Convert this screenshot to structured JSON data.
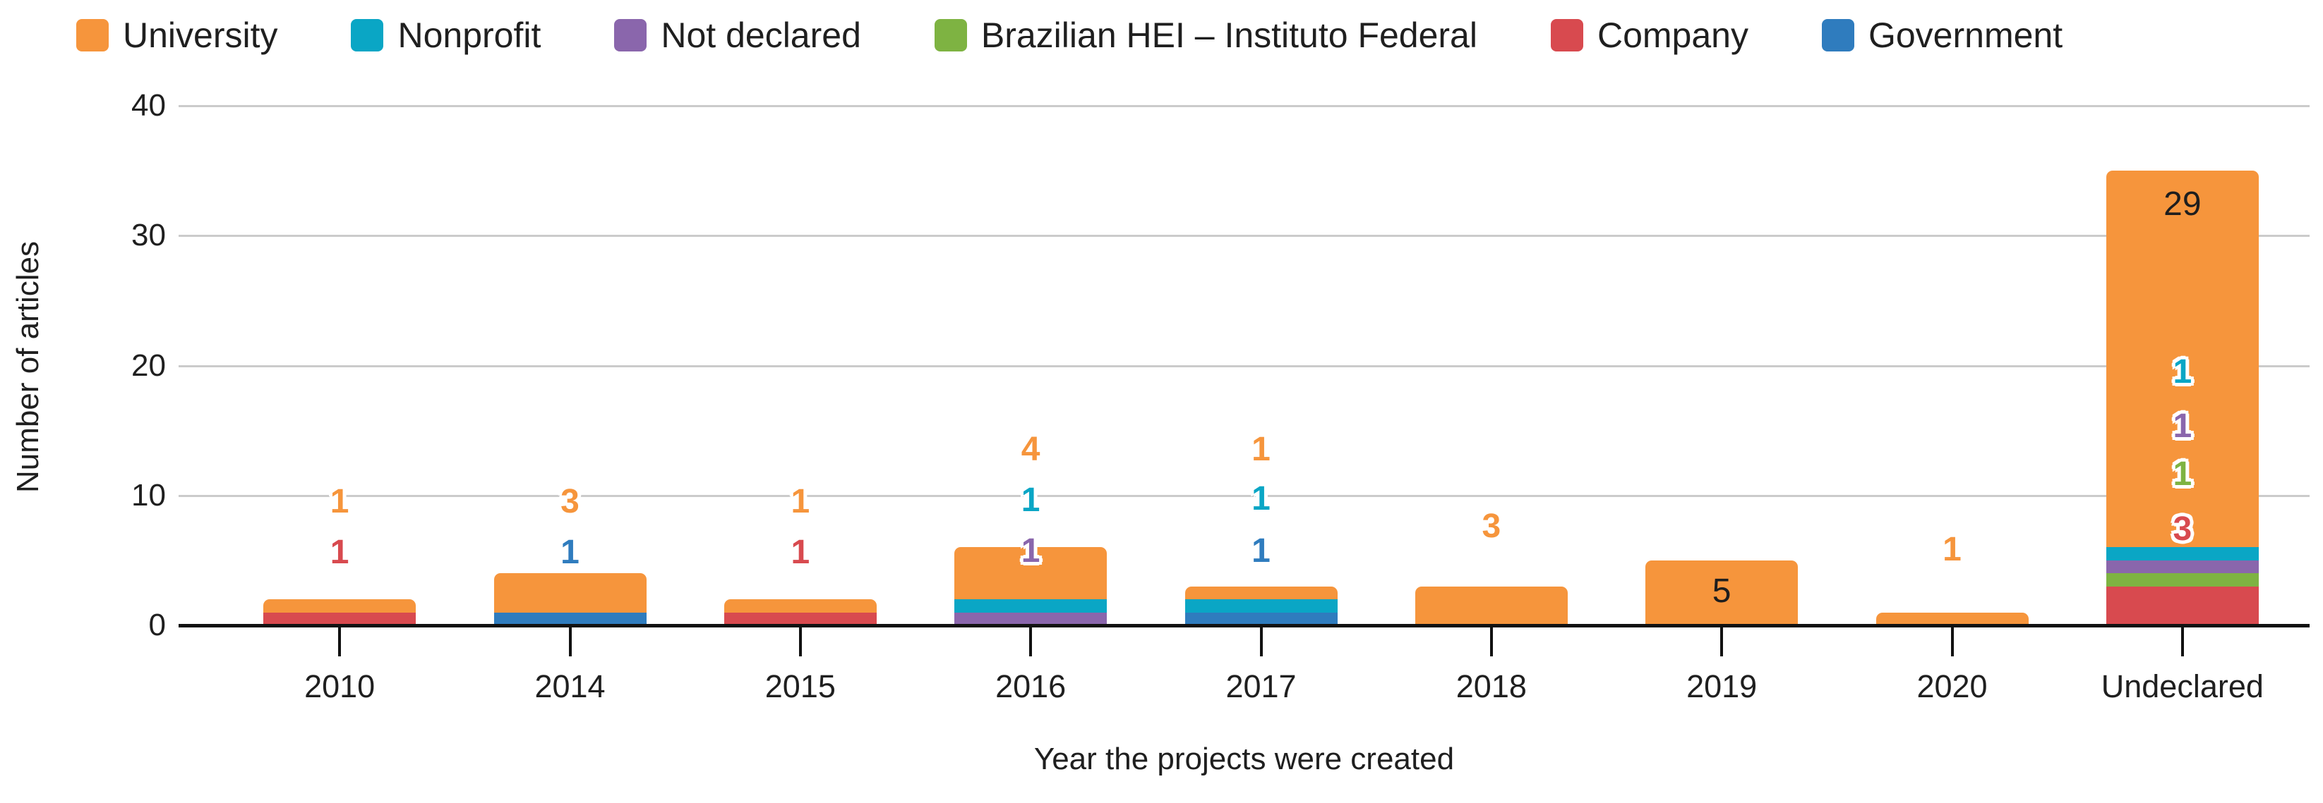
{
  "colors": {
    "university": "#F6953C",
    "nonprofit": "#0AA6C5",
    "not_declared": "#8A66AC",
    "brazilian_hei": "#7EB342",
    "company": "#D84A4F",
    "government": "#2F7CBE",
    "black": "#1E1E1E",
    "grid": "#CBCBCB",
    "axis": "#111111"
  },
  "legend": {
    "items": [
      {
        "label": "University",
        "color_key": "university"
      },
      {
        "label": "Nonprofit",
        "color_key": "nonprofit"
      },
      {
        "label": "Not declared",
        "color_key": "not_declared"
      },
      {
        "label": "Brazilian HEI – Instituto Federal",
        "color_key": "brazilian_hei"
      },
      {
        "label": "Company",
        "color_key": "company"
      },
      {
        "label": "Government",
        "color_key": "government"
      }
    ]
  },
  "y_axis": {
    "title": "Number of articles",
    "ticks": [
      "0",
      "10",
      "20",
      "30",
      "40"
    ],
    "max": 40
  },
  "x_axis": {
    "title": "Year the projects were created",
    "categories": [
      "2010",
      "2014",
      "2015",
      "2016",
      "2017",
      "2018",
      "2019",
      "2020",
      "Undeclared"
    ]
  },
  "bars": [
    {
      "category": "2010",
      "segments": [
        {
          "series": "company",
          "value": 1
        },
        {
          "series": "university",
          "value": 1
        }
      ],
      "annotations": [
        {
          "text": "1",
          "color_key": "university",
          "y": 9.5,
          "style": "outlined"
        },
        {
          "text": "1",
          "color_key": "company",
          "y": 5.6,
          "style": "outlined"
        }
      ]
    },
    {
      "category": "2014",
      "segments": [
        {
          "series": "government",
          "value": 1
        },
        {
          "series": "university",
          "value": 3
        }
      ],
      "annotations": [
        {
          "text": "3",
          "color_key": "university",
          "y": 9.5,
          "style": "outlined"
        },
        {
          "text": "1",
          "color_key": "government",
          "y": 5.6,
          "style": "outlined"
        }
      ]
    },
    {
      "category": "2015",
      "segments": [
        {
          "series": "company",
          "value": 1
        },
        {
          "series": "university",
          "value": 1
        }
      ],
      "annotations": [
        {
          "text": "1",
          "color_key": "university",
          "y": 9.5,
          "style": "outlined"
        },
        {
          "text": "1",
          "color_key": "company",
          "y": 5.6,
          "style": "outlined"
        }
      ]
    },
    {
      "category": "2016",
      "segments": [
        {
          "series": "not_declared",
          "value": 1
        },
        {
          "series": "nonprofit",
          "value": 1
        },
        {
          "series": "university",
          "value": 4
        }
      ],
      "annotations": [
        {
          "text": "4",
          "color_key": "university",
          "y": 13.5,
          "style": "outlined"
        },
        {
          "text": "1",
          "color_key": "nonprofit",
          "y": 9.6,
          "style": "outlined"
        },
        {
          "text": "1",
          "color_key": "not_declared",
          "y": 5.7,
          "style": "outlined"
        }
      ]
    },
    {
      "category": "2017",
      "segments": [
        {
          "series": "government",
          "value": 1
        },
        {
          "series": "nonprofit",
          "value": 1
        },
        {
          "series": "university",
          "value": 1
        }
      ],
      "annotations": [
        {
          "text": "1",
          "color_key": "university",
          "y": 13.5,
          "style": "outlined"
        },
        {
          "text": "1",
          "color_key": "nonprofit",
          "y": 9.7,
          "style": "outlined"
        },
        {
          "text": "1",
          "color_key": "government",
          "y": 5.7,
          "style": "outlined"
        }
      ]
    },
    {
      "category": "2018",
      "segments": [
        {
          "series": "university",
          "value": 3
        }
      ],
      "annotations": [
        {
          "text": "3",
          "color_key": "university",
          "y": 7.6,
          "style": "outlined"
        }
      ]
    },
    {
      "category": "2019",
      "segments": [
        {
          "series": "university",
          "value": 5
        }
      ],
      "annotations": [
        {
          "text": "5",
          "color_key": "black",
          "y": 2.6,
          "style": "plain"
        }
      ]
    },
    {
      "category": "2020",
      "segments": [
        {
          "series": "university",
          "value": 1
        }
      ],
      "annotations": [
        {
          "text": "1",
          "color_key": "university",
          "y": 5.8,
          "style": "outlined"
        }
      ]
    },
    {
      "category": "Undeclared",
      "segments": [
        {
          "series": "company",
          "value": 3
        },
        {
          "series": "brazilian_hei",
          "value": 1
        },
        {
          "series": "not_declared",
          "value": 1
        },
        {
          "series": "nonprofit",
          "value": 1
        },
        {
          "series": "university",
          "value": 29
        }
      ],
      "annotations": [
        {
          "text": "29",
          "color_key": "black",
          "y": 32.4,
          "style": "plain"
        },
        {
          "text": "1",
          "color_key": "nonprofit",
          "y": 19.5,
          "style": "outlined"
        },
        {
          "text": "1",
          "color_key": "not_declared",
          "y": 15.3,
          "style": "outlined"
        },
        {
          "text": "1",
          "color_key": "brazilian_hei",
          "y": 11.6,
          "style": "outlined"
        },
        {
          "text": "3",
          "color_key": "company",
          "y": 7.4,
          "style": "outlined"
        }
      ]
    }
  ],
  "chart_data": {
    "type": "bar",
    "stacked": true,
    "title": "",
    "xlabel": "Year the projects were created",
    "ylabel": "Number of articles",
    "ylim": [
      0,
      40
    ],
    "yticks": [
      0,
      10,
      20,
      30,
      40
    ],
    "grid": "horizontal",
    "legend_position": "top",
    "categories": [
      "2010",
      "2014",
      "2015",
      "2016",
      "2017",
      "2018",
      "2019",
      "2020",
      "Undeclared"
    ],
    "series": [
      {
        "name": "University",
        "color": "#F6953C",
        "values": [
          1,
          3,
          1,
          4,
          1,
          3,
          5,
          1,
          29
        ]
      },
      {
        "name": "Nonprofit",
        "color": "#0AA6C5",
        "values": [
          0,
          0,
          0,
          1,
          1,
          0,
          0,
          0,
          1
        ]
      },
      {
        "name": "Not declared",
        "color": "#8A66AC",
        "values": [
          0,
          0,
          0,
          1,
          0,
          0,
          0,
          0,
          1
        ]
      },
      {
        "name": "Brazilian HEI – Instituto Federal",
        "color": "#7EB342",
        "values": [
          0,
          0,
          0,
          0,
          0,
          0,
          0,
          0,
          1
        ]
      },
      {
        "name": "Company",
        "color": "#D84A4F",
        "values": [
          1,
          0,
          1,
          0,
          0,
          0,
          0,
          0,
          3
        ]
      },
      {
        "name": "Government",
        "color": "#2F7CBE",
        "values": [
          0,
          1,
          0,
          0,
          1,
          0,
          0,
          0,
          0
        ]
      }
    ],
    "totals": [
      2,
      4,
      2,
      6,
      3,
      3,
      5,
      1,
      35
    ]
  }
}
